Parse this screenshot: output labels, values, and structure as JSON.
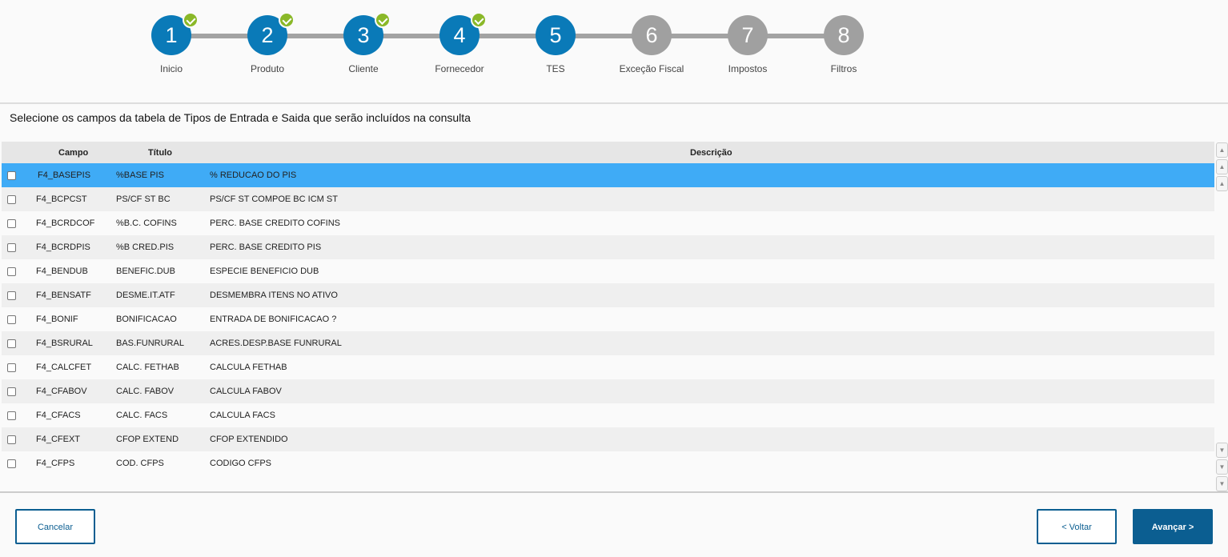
{
  "steps": [
    {
      "num": "1",
      "label": "Inicio",
      "state": "done"
    },
    {
      "num": "2",
      "label": "Produto",
      "state": "done"
    },
    {
      "num": "3",
      "label": "Cliente",
      "state": "done"
    },
    {
      "num": "4",
      "label": "Fornecedor",
      "state": "done"
    },
    {
      "num": "5",
      "label": "TES",
      "state": "current"
    },
    {
      "num": "6",
      "label": "Exceção Fiscal",
      "state": "todo"
    },
    {
      "num": "7",
      "label": "Impostos",
      "state": "todo"
    },
    {
      "num": "8",
      "label": "Filtros",
      "state": "todo"
    }
  ],
  "instruction": "Selecione os campos da tabela de Tipos de Entrada e Saida que serão incluídos na consulta",
  "table": {
    "columns": [
      "Campo",
      "Título",
      "Descrição"
    ],
    "rows": [
      [
        "F4_BASEPIS",
        "%BASE PIS",
        "% REDUCAO DO PIS"
      ],
      [
        "F4_BCPCST",
        "PS/CF ST BC",
        "PS/CF ST COMPOE BC ICM ST"
      ],
      [
        "F4_BCRDCOF",
        "%B.C. COFINS",
        "PERC. BASE CREDITO COFINS"
      ],
      [
        "F4_BCRDPIS",
        "%B CRED.PIS",
        "PERC. BASE CREDITO PIS"
      ],
      [
        "F4_BENDUB",
        "BENEFIC.DUB",
        "ESPECIE BENEFICIO DUB"
      ],
      [
        "F4_BENSATF",
        "DESME.IT.ATF",
        "DESMEMBRA ITENS NO ATIVO"
      ],
      [
        "F4_BONIF",
        "BONIFICACAO",
        "ENTRADA DE BONIFICACAO ?"
      ],
      [
        "F4_BSRURAL",
        "BAS.FUNRURAL",
        "ACRES.DESP.BASE FUNRURAL"
      ],
      [
        "F4_CALCFET",
        "CALC. FETHAB",
        "CALCULA FETHAB"
      ],
      [
        "F4_CFABOV",
        "CALC. FABOV",
        "CALCULA FABOV"
      ],
      [
        "F4_CFACS",
        "CALC. FACS",
        "CALCULA FACS"
      ],
      [
        "F4_CFEXT",
        "CFOP EXTEND",
        "CFOP EXTENDIDO"
      ],
      [
        "F4_CFPS",
        "COD. CFPS",
        "CODIGO CFPS"
      ]
    ],
    "selected_row": 0
  },
  "buttons": {
    "cancel": "Cancelar",
    "back": "< Voltar",
    "next": "Avançar >"
  },
  "colors": {
    "step_done": "#0a7ab8",
    "step_todo": "#a0a0a0",
    "check": "#8ab828",
    "selected_row": "#3fabf6",
    "primary": "#0b5e91"
  }
}
